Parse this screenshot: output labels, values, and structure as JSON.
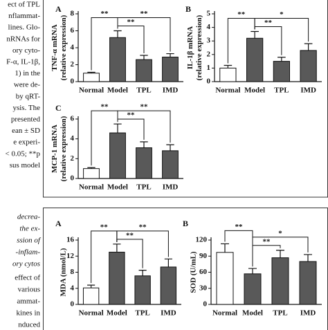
{
  "side_text": {
    "top": [
      "ect of TPL",
      "nflammat-",
      "lines. Glo-",
      "nRNAs for",
      "ory cyto-",
      "F-α, IL-1β,",
      "1) in the",
      "were de-",
      "by qRT-",
      "ysis. The",
      "presented",
      "ean ± SD",
      "e experi-",
      "< 0.05; **p",
      "sus model"
    ],
    "italic": [
      "decrea-",
      "the ex-",
      "ssion of",
      "-inflam-",
      "ory cytos"
    ],
    "bottom": [
      "effect of",
      "various",
      "ammat-",
      "kines in",
      "nduced"
    ]
  },
  "chart_data": [
    {
      "type": "bar",
      "panel": "A",
      "ylabel": [
        "TNF-α mRNA",
        "(relative expression)"
      ],
      "categories": [
        "Normal",
        "Model",
        "TPL",
        "IMD"
      ],
      "values": [
        1.0,
        5.2,
        2.6,
        2.9
      ],
      "errors": [
        0.1,
        0.8,
        0.5,
        0.4
      ],
      "colors": [
        "#ffffff",
        "#595959",
        "#595959",
        "#595959"
      ],
      "ylim": [
        0,
        8
      ],
      "yticks": [
        0,
        2,
        4,
        6,
        8
      ],
      "significance": [
        {
          "from": 0,
          "to": 1,
          "label": "**"
        },
        {
          "from": 1,
          "to": 2,
          "label": "**"
        },
        {
          "from": 1,
          "to": 3,
          "label": "**"
        }
      ]
    },
    {
      "type": "bar",
      "panel": "B",
      "ylabel": [
        "IL-1β mRNA",
        "(relative expression)"
      ],
      "categories": [
        "Normal",
        "Model",
        "TPL",
        "IMD"
      ],
      "values": [
        1.0,
        3.2,
        1.5,
        2.3
      ],
      "errors": [
        0.2,
        0.5,
        0.3,
        0.5
      ],
      "colors": [
        "#ffffff",
        "#595959",
        "#595959",
        "#595959"
      ],
      "ylim": [
        0,
        5
      ],
      "yticks": [
        0,
        1,
        2,
        3,
        4,
        5
      ],
      "significance": [
        {
          "from": 0,
          "to": 1,
          "label": "**"
        },
        {
          "from": 1,
          "to": 2,
          "label": "**"
        },
        {
          "from": 1,
          "to": 3,
          "label": "*"
        }
      ]
    },
    {
      "type": "bar",
      "panel": "C",
      "ylabel": [
        "MCP-1 mRNA",
        "(relative expression)"
      ],
      "categories": [
        "Normal",
        "Model",
        "TPL",
        "IMD"
      ],
      "values": [
        1.0,
        4.6,
        3.1,
        2.8
      ],
      "errors": [
        0.1,
        0.9,
        0.6,
        0.6
      ],
      "colors": [
        "#ffffff",
        "#595959",
        "#595959",
        "#595959"
      ],
      "ylim": [
        0,
        6
      ],
      "yticks": [
        0,
        2,
        4,
        6
      ],
      "significance": [
        {
          "from": 0,
          "to": 1,
          "label": "**"
        },
        {
          "from": 1,
          "to": 2,
          "label": "**"
        },
        {
          "from": 1,
          "to": 3,
          "label": "**"
        }
      ]
    },
    {
      "type": "bar",
      "panel": "A",
      "ylabel": [
        "MDA (nmol/L)"
      ],
      "categories": [
        "Normal",
        "Model",
        "TPL",
        "IMD"
      ],
      "values": [
        4.1,
        13.0,
        7.1,
        9.3
      ],
      "errors": [
        0.7,
        2.0,
        1.4,
        2.0
      ],
      "colors": [
        "#ffffff",
        "#595959",
        "#595959",
        "#595959"
      ],
      "ylim": [
        0,
        16
      ],
      "yticks": [
        0,
        4,
        8,
        12,
        16
      ],
      "significance": [
        {
          "from": 0,
          "to": 1,
          "label": "**"
        },
        {
          "from": 1,
          "to": 2,
          "label": "**"
        },
        {
          "from": 1,
          "to": 3,
          "label": "**"
        }
      ]
    },
    {
      "type": "bar",
      "panel": "B",
      "ylabel": [
        "SOD (U/mL)"
      ],
      "categories": [
        "Normal",
        "Model",
        "TPL",
        "IMD"
      ],
      "values": [
        97,
        57,
        87,
        80
      ],
      "errors": [
        16,
        10,
        14,
        13
      ],
      "colors": [
        "#ffffff",
        "#595959",
        "#595959",
        "#595959"
      ],
      "ylim": [
        0,
        120
      ],
      "yticks": [
        0,
        30,
        60,
        90,
        120
      ],
      "significance": [
        {
          "from": 0,
          "to": 1,
          "label": "**"
        },
        {
          "from": 1,
          "to": 2,
          "label": "**"
        },
        {
          "from": 1,
          "to": 3,
          "label": "*"
        }
      ]
    }
  ]
}
